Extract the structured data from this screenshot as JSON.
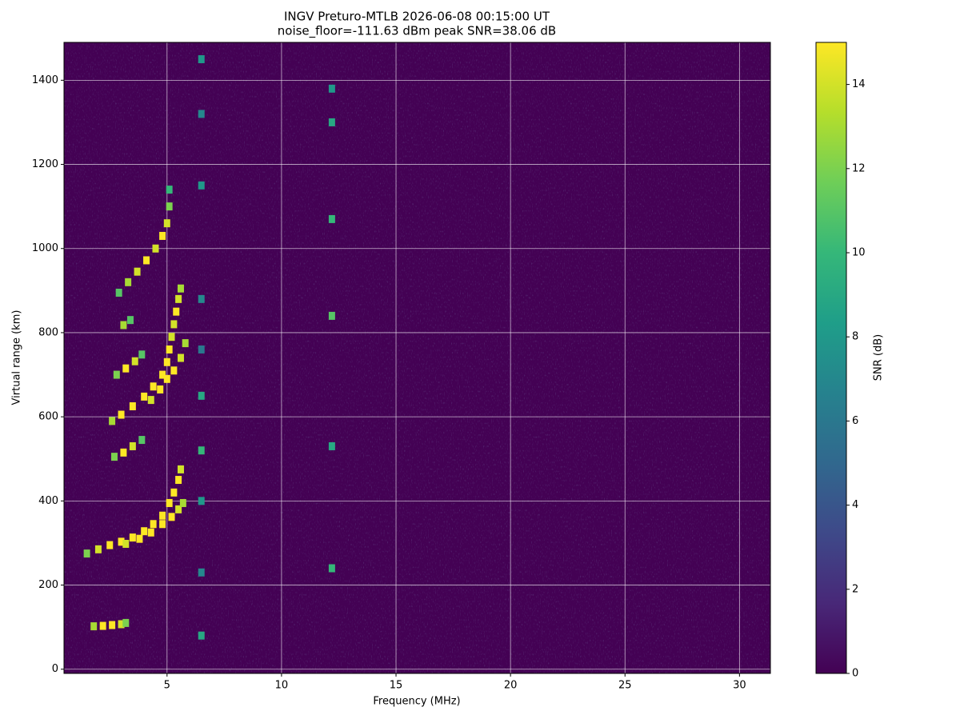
{
  "chart_data": {
    "type": "heatmap",
    "title": "INGV Preturo-MTLB 2026-06-08 00:15:00  UT",
    "subtitle": "noise_floor=-111.63 dBm peak SNR=38.06 dB",
    "x_label": "Frequency (MHz)",
    "y_label": "Virtual range (km)",
    "colorbar_label": "SNR (dB)",
    "xlim": [
      0.5,
      31.35
    ],
    "ylim": [
      -10,
      1490
    ],
    "xticks": [
      5,
      10,
      15,
      20,
      25,
      30
    ],
    "yticks": [
      0,
      200,
      400,
      600,
      800,
      1000,
      1200,
      1400
    ],
    "clim": [
      0,
      15
    ],
    "cticks": [
      0,
      2,
      4,
      6,
      8,
      10,
      12,
      14
    ],
    "colormap": [
      "#440154",
      "#482878",
      "#3e4989",
      "#31688e",
      "#26828e",
      "#1f9e89",
      "#35b779",
      "#6ece58",
      "#b5de2b",
      "#fde725"
    ],
    "grid": true,
    "series": [
      {
        "x": [
          1.5,
          2.0,
          2.5,
          3.0,
          3.5,
          4.0,
          4.4,
          4.8,
          5.1,
          5.3,
          5.5,
          5.6
        ],
        "y": [
          275,
          285,
          295,
          303,
          313,
          328,
          345,
          365,
          395,
          420,
          450,
          475
        ],
        "values": [
          12,
          14,
          15,
          15,
          15,
          15,
          15,
          15,
          15,
          15,
          15,
          14
        ]
      },
      {
        "x": [
          3.2,
          3.8,
          4.3,
          4.8,
          5.2,
          5.5,
          5.7
        ],
        "y": [
          298,
          310,
          325,
          345,
          362,
          380,
          395
        ],
        "values": [
          14,
          15,
          15,
          15,
          15,
          14,
          13
        ]
      },
      {
        "x": [
          2.6,
          3.0,
          3.5,
          4.0,
          4.4,
          4.8,
          5.0,
          5.1,
          5.2,
          5.3,
          5.4,
          5.5,
          5.6
        ],
        "y": [
          590,
          605,
          625,
          648,
          672,
          700,
          730,
          760,
          790,
          820,
          850,
          880,
          905
        ],
        "values": [
          13,
          15,
          15,
          15,
          15,
          15,
          15,
          15,
          14,
          14,
          15,
          14,
          13
        ]
      },
      {
        "x": [
          4.3,
          4.7,
          5.0,
          5.3,
          5.6,
          5.8
        ],
        "y": [
          640,
          665,
          690,
          710,
          740,
          775
        ],
        "values": [
          14,
          15,
          15,
          15,
          14,
          13
        ]
      },
      {
        "x": [
          2.9,
          3.3,
          3.7,
          4.1,
          4.5,
          4.8,
          5.0,
          5.1,
          5.1
        ],
        "y": [
          895,
          920,
          945,
          972,
          1000,
          1030,
          1060,
          1100,
          1140
        ],
        "values": [
          11,
          13,
          14,
          15,
          14,
          15,
          14,
          12,
          10
        ]
      },
      {
        "x": [
          1.8,
          2.2,
          2.6,
          3.0,
          3.2
        ],
        "y": [
          102,
          103,
          105,
          107,
          110
        ],
        "values": [
          13,
          15,
          15,
          14,
          12
        ]
      },
      {
        "x": [
          2.8,
          3.2,
          3.6,
          3.9
        ],
        "y": [
          700,
          715,
          732,
          748
        ],
        "values": [
          12,
          15,
          14,
          11
        ]
      },
      {
        "x": [
          2.7,
          3.1,
          3.5,
          3.9
        ],
        "y": [
          505,
          515,
          530,
          545
        ],
        "values": [
          12,
          15,
          14,
          11
        ]
      },
      {
        "x": [
          3.1,
          3.4
        ],
        "y": [
          818,
          830
        ],
        "values": [
          13,
          11
        ]
      },
      {
        "x": [
          6.5,
          6.5,
          6.5,
          6.5,
          6.5,
          6.5,
          6.5,
          6.5,
          6.5,
          6.5
        ],
        "y": [
          80,
          230,
          400,
          520,
          650,
          760,
          880,
          1150,
          1320,
          1450
        ],
        "values": [
          9,
          7,
          8,
          10,
          9,
          6,
          7,
          8,
          7,
          8
        ]
      },
      {
        "x": [
          12.2,
          12.2,
          12.2,
          12.2,
          12.2,
          12.2
        ],
        "y": [
          240,
          530,
          840,
          1070,
          1300,
          1380
        ],
        "values": [
          10,
          9,
          11,
          10,
          9,
          8
        ]
      }
    ]
  }
}
